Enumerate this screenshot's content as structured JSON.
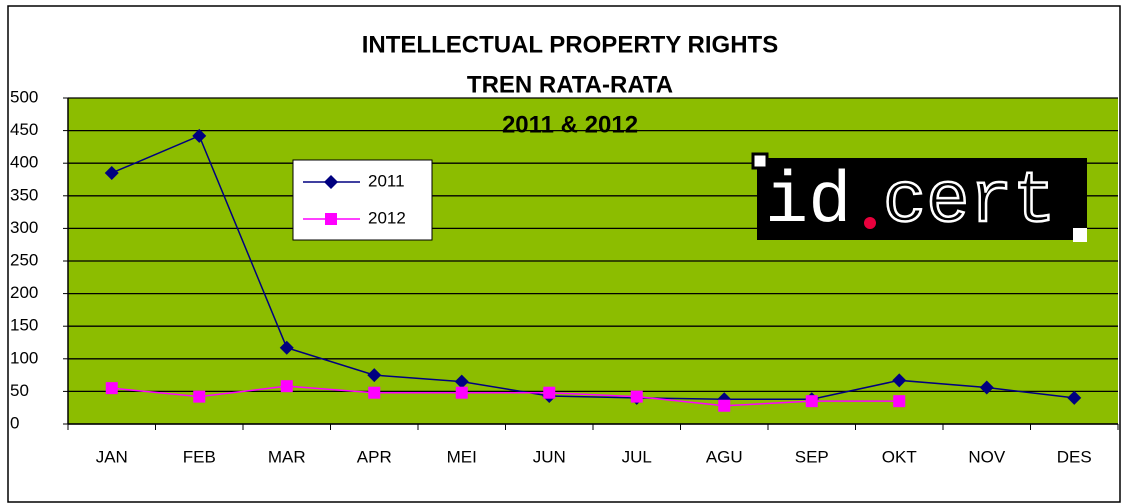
{
  "chart_data": {
    "type": "line",
    "title": "INTELLECTUAL PROPERTY RIGHTS",
    "subtitle": [
      "TREN RATA-RATA",
      "2011 & 2012"
    ],
    "categories": [
      "JAN",
      "FEB",
      "MAR",
      "APR",
      "MEI",
      "JUN",
      "JUL",
      "AGU",
      "SEP",
      "OKT",
      "NOV",
      "DES"
    ],
    "series": [
      {
        "name": "2011",
        "color": "#000080",
        "marker": "diamond",
        "values": [
          385,
          442,
          117,
          75,
          65,
          43,
          40,
          38,
          38,
          67,
          56,
          40
        ]
      },
      {
        "name": "2012",
        "color": "#ff00ff",
        "marker": "square",
        "values": [
          55,
          42,
          58,
          48,
          48,
          48,
          42,
          28,
          35,
          35,
          null,
          null
        ]
      }
    ],
    "ylim": [
      0,
      500
    ],
    "yticks": [
      0,
      50,
      100,
      150,
      200,
      250,
      300,
      350,
      400,
      450,
      500
    ],
    "grid": true,
    "plot_color": "#8cbd00",
    "logo": [
      "id",
      "cert"
    ]
  }
}
